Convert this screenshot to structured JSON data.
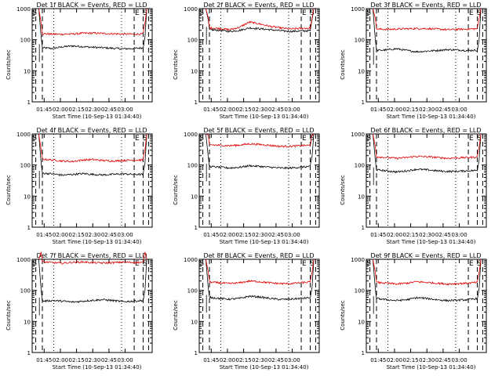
{
  "chart_data": [
    {
      "type": "line",
      "title": "Det 1f BLACK = Events, RED = LLD",
      "xlabel": "Start Time (10-Sep-13 01:34:40)",
      "ylabel": "Counts/sec",
      "yscale": "log",
      "ylim": [
        1,
        1000
      ],
      "xtick_labels": [
        "01:45",
        "02:00",
        "02:15",
        "02:30",
        "02:45",
        "03:00"
      ],
      "ytick_labels": [
        "1",
        "10",
        "100",
        "1000"
      ],
      "markers": [
        "S",
        "E",
        "S"
      ],
      "series": [
        {
          "name": "Events",
          "color": "#000000",
          "level": 55,
          "wave": [
            0,
            -3,
            4,
            8,
            5,
            2,
            0,
            -2,
            -4,
            -3,
            0
          ]
        },
        {
          "name": "LLD",
          "color": "#e00000",
          "level": 155,
          "wave": [
            0,
            -4,
            -5,
            -2,
            6,
            8,
            4,
            0,
            -3,
            -4,
            -2
          ]
        }
      ]
    },
    {
      "type": "line",
      "title": "Det 2f BLACK = Events, RED = LLD",
      "xlabel": "Start Time (10-Sep-13 01:34:40)",
      "ylabel": "Counts/sec",
      "yscale": "log",
      "ylim": [
        1,
        1000
      ],
      "xtick_labels": [
        "01:45",
        "02:00",
        "02:15",
        "02:30",
        "02:45",
        "03:00"
      ],
      "ytick_labels": [
        "1",
        "10",
        "100",
        "1000"
      ],
      "markers": [
        "S",
        "E",
        "S"
      ],
      "series": [
        {
          "name": "Events",
          "color": "#000000",
          "level": 200,
          "wave": [
            10,
            0,
            -15,
            0,
            40,
            25,
            10,
            -5,
            -15,
            -10,
            -5
          ]
        },
        {
          "name": "LLD",
          "color": "#e00000",
          "level": 230,
          "wave": [
            10,
            0,
            -20,
            20,
            140,
            90,
            40,
            10,
            -10,
            0,
            5
          ]
        }
      ]
    },
    {
      "type": "line",
      "title": "Det 3f BLACK = Events, RED = LLD",
      "xlabel": "Start Time (10-Sep-13 01:34:40)",
      "ylabel": "Counts/sec",
      "yscale": "log",
      "ylim": [
        1,
        1000
      ],
      "xtick_labels": [
        "01:45",
        "02:00",
        "02:15",
        "02:30",
        "02:45",
        "03:00"
      ],
      "ytick_labels": [
        "1",
        "10",
        "100",
        "1000"
      ],
      "markers": [
        "S",
        "E",
        "S"
      ],
      "series": [
        {
          "name": "Events",
          "color": "#000000",
          "level": 45,
          "wave": [
            0,
            2,
            6,
            0,
            -4,
            -2,
            0,
            3,
            2,
            0,
            1
          ]
        },
        {
          "name": "LLD",
          "color": "#e00000",
          "level": 220,
          "wave": [
            0,
            -5,
            0,
            5,
            10,
            8,
            0,
            -10,
            -5,
            0,
            5
          ]
        }
      ]
    },
    {
      "type": "line",
      "title": "Det 4f BLACK = Events, RED = LLD",
      "xlabel": "Start Time (10-Sep-13 01:34:40)",
      "ylabel": "Counts/sec",
      "yscale": "log",
      "ylim": [
        1,
        1000
      ],
      "xtick_labels": [
        "01:45",
        "02:00",
        "02:15",
        "02:30",
        "02:45",
        "03:00"
      ],
      "ytick_labels": [
        "1",
        "10",
        "100",
        "1000"
      ],
      "markers": [
        "S",
        "E",
        "S"
      ],
      "series": [
        {
          "name": "Events",
          "color": "#000000",
          "level": 50,
          "wave": [
            5,
            2,
            -3,
            0,
            3,
            0,
            -2,
            0,
            2,
            0,
            0
          ]
        },
        {
          "name": "LLD",
          "color": "#e00000",
          "level": 140,
          "wave": [
            15,
            5,
            -5,
            -10,
            5,
            10,
            0,
            -5,
            0,
            5,
            5
          ]
        }
      ]
    },
    {
      "type": "line",
      "title": "Det 5f BLACK = Events, RED = LLD",
      "xlabel": "Start Time (10-Sep-13 01:34:40)",
      "ylabel": "Counts/sec",
      "yscale": "log",
      "ylim": [
        1,
        1000
      ],
      "xtick_labels": [
        "01:45",
        "02:00",
        "02:15",
        "02:30",
        "02:45",
        "03:00"
      ],
      "ytick_labels": [
        "1",
        "10",
        "100",
        "1000"
      ],
      "markers": [
        "S",
        "E",
        "S"
      ],
      "series": [
        {
          "name": "Events",
          "color": "#000000",
          "level": 85,
          "wave": [
            5,
            0,
            -5,
            0,
            10,
            5,
            0,
            -5,
            -5,
            0,
            5
          ]
        },
        {
          "name": "LLD",
          "color": "#e00000",
          "level": 420,
          "wave": [
            30,
            10,
            0,
            20,
            60,
            40,
            10,
            -20,
            -20,
            0,
            10
          ]
        }
      ]
    },
    {
      "type": "line",
      "title": "Det 6f BLACK = Events, RED = LLD",
      "xlabel": "Start Time (10-Sep-13 01:34:40)",
      "ylabel": "Counts/sec",
      "yscale": "log",
      "ylim": [
        1,
        1000
      ],
      "xtick_labels": [
        "01:45",
        "02:00",
        "02:15",
        "02:30",
        "02:45",
        "03:00"
      ],
      "ytick_labels": [
        "1",
        "10",
        "100",
        "1000"
      ],
      "markers": [
        "S",
        "E",
        "S"
      ],
      "series": [
        {
          "name": "Events",
          "color": "#000000",
          "level": 65,
          "wave": [
            5,
            0,
            -5,
            0,
            8,
            5,
            0,
            -3,
            -2,
            0,
            2
          ]
        },
        {
          "name": "LLD",
          "color": "#e00000",
          "level": 175,
          "wave": [
            10,
            0,
            -10,
            0,
            15,
            10,
            0,
            -10,
            -5,
            0,
            5
          ]
        }
      ]
    },
    {
      "type": "line",
      "title": "Det 7f BLACK = Events, RED = LLD",
      "xlabel": "Start Time (10-Sep-13 01:34:40)",
      "ylabel": "Counts/sec",
      "yscale": "log",
      "ylim": [
        1,
        1000
      ],
      "xtick_labels": [
        "01:45",
        "02:00",
        "02:15",
        "02:30",
        "02:45",
        "03:00"
      ],
      "ytick_labels": [
        "1",
        "10",
        "100",
        "1000"
      ],
      "markers": [
        "S",
        "E",
        "S"
      ],
      "series": [
        {
          "name": "Events",
          "color": "#000000",
          "level": 45,
          "wave": [
            0,
            2,
            0,
            -3,
            0,
            3,
            5,
            2,
            -2,
            0,
            2
          ]
        },
        {
          "name": "LLD",
          "color": "#e00000",
          "level": 780,
          "wave": [
            40,
            0,
            -30,
            20,
            40,
            0,
            -20,
            0,
            30,
            10,
            0
          ]
        }
      ]
    },
    {
      "type": "line",
      "title": "Det 8f BLACK = Events, RED = LLD",
      "xlabel": "Start Time (10-Sep-13 01:34:40)",
      "ylabel": "Counts/sec",
      "yscale": "log",
      "ylim": [
        1,
        1000
      ],
      "xtick_labels": [
        "01:45",
        "02:00",
        "02:15",
        "02:30",
        "02:45",
        "03:00"
      ],
      "ytick_labels": [
        "1",
        "10",
        "100",
        "1000"
      ],
      "markers": [
        "S",
        "E",
        "S"
      ],
      "series": [
        {
          "name": "Events",
          "color": "#000000",
          "level": 55,
          "wave": [
            5,
            0,
            -3,
            0,
            10,
            6,
            0,
            -4,
            -3,
            0,
            3
          ]
        },
        {
          "name": "LLD",
          "color": "#e00000",
          "level": 175,
          "wave": [
            10,
            0,
            -10,
            0,
            25,
            15,
            0,
            -10,
            -10,
            0,
            10
          ]
        }
      ]
    },
    {
      "type": "line",
      "title": "Det 9f BLACK = Events, RED = LLD",
      "xlabel": "Start Time (10-Sep-13 01:34:40)",
      "ylabel": "Counts/sec",
      "yscale": "log",
      "ylim": [
        1,
        1000
      ],
      "xtick_labels": [
        "01:45",
        "02:00",
        "02:15",
        "02:30",
        "02:45",
        "03:00"
      ],
      "ytick_labels": [
        "1",
        "10",
        "100",
        "1000"
      ],
      "markers": [
        "S",
        "E",
        "S"
      ],
      "series": [
        {
          "name": "Events",
          "color": "#000000",
          "level": 50,
          "wave": [
            5,
            0,
            -3,
            0,
            8,
            5,
            0,
            -3,
            -2,
            0,
            5
          ]
        },
        {
          "name": "LLD",
          "color": "#e00000",
          "level": 170,
          "wave": [
            10,
            0,
            -10,
            0,
            20,
            10,
            0,
            -10,
            -5,
            0,
            10
          ]
        }
      ]
    }
  ]
}
